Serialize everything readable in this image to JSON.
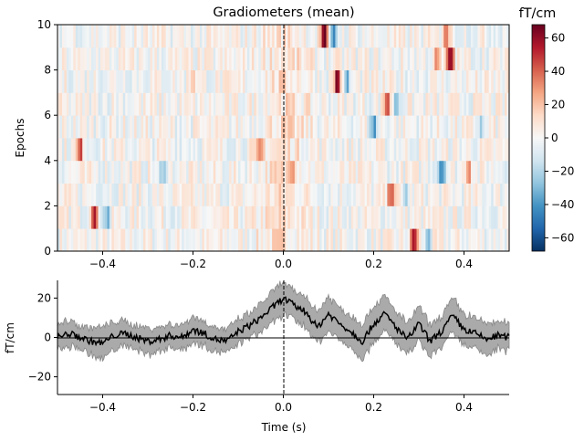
{
  "chart_data": [
    {
      "type": "heatmap",
      "title": "Gradiometers (mean)",
      "ylabel": "Epochs",
      "xlim": [
        -0.5,
        0.5
      ],
      "ylim": [
        0,
        10
      ],
      "x_ticks": [
        -0.4,
        -0.2,
        0.0,
        0.2,
        0.4
      ],
      "x_tick_labels": [
        "−0.4",
        "−0.2",
        "0.0",
        "0.2",
        "0.4"
      ],
      "y_ticks": [
        0,
        2,
        4,
        6,
        8,
        10
      ],
      "y_tick_labels": [
        "0",
        "2",
        "4",
        "6",
        "8",
        "10"
      ],
      "event_marker_x": 0.0,
      "colormap": "RdBu_r",
      "color_range": [
        -68,
        68
      ],
      "colorbar": {
        "label": "fT/cm",
        "ticks": [
          60,
          40,
          20,
          0,
          -20,
          -40,
          -60
        ],
        "tick_labels": [
          "60",
          "40",
          "20",
          "0",
          "−20",
          "−40",
          "−60"
        ]
      },
      "epochs": 10,
      "x_bins": 200,
      "notable_events": [
        {
          "epoch": 9,
          "time": 0.09,
          "value": 65
        },
        {
          "epoch": 9,
          "time": 0.11,
          "value": -45
        },
        {
          "epoch": 9,
          "time": 0.36,
          "value": 45
        },
        {
          "epoch": 8,
          "time": 0.37,
          "value": 68
        },
        {
          "epoch": 8,
          "time": 0.34,
          "value": 25
        },
        {
          "epoch": 7,
          "time": 0.12,
          "value": 66
        },
        {
          "epoch": 7,
          "time": 0.14,
          "value": -35
        },
        {
          "epoch": 7,
          "time": -0.2,
          "value": 25
        },
        {
          "epoch": 6,
          "time": 0.23,
          "value": 50
        },
        {
          "epoch": 6,
          "time": 0.25,
          "value": -25
        },
        {
          "epoch": 5,
          "time": 0.2,
          "value": -40
        },
        {
          "epoch": 5,
          "time": 0.44,
          "value": -20
        },
        {
          "epoch": 4,
          "time": -0.45,
          "value": 40
        },
        {
          "epoch": 4,
          "time": -0.05,
          "value": 25
        },
        {
          "epoch": 3,
          "time": 0.02,
          "value": 35
        },
        {
          "epoch": 3,
          "time": 0.35,
          "value": -40
        },
        {
          "epoch": 3,
          "time": 0.41,
          "value": 40
        },
        {
          "epoch": 3,
          "time": -0.27,
          "value": -30
        },
        {
          "epoch": 2,
          "time": 0.24,
          "value": 55
        },
        {
          "epoch": 2,
          "time": 0.27,
          "value": -20
        },
        {
          "epoch": 1,
          "time": -0.42,
          "value": 60
        },
        {
          "epoch": 1,
          "time": -0.39,
          "value": -30
        },
        {
          "epoch": 0,
          "time": 0.29,
          "value": 60
        },
        {
          "epoch": 0,
          "time": 0.32,
          "value": -25
        }
      ]
    },
    {
      "type": "line",
      "xlabel": "Time (s)",
      "ylabel": "fT/cm",
      "xlim": [
        -0.5,
        0.5
      ],
      "ylim": [
        -29,
        29
      ],
      "x_ticks": [
        -0.4,
        -0.2,
        0.0,
        0.2,
        0.4
      ],
      "x_tick_labels": [
        "−0.4",
        "−0.2",
        "0.0",
        "0.2",
        "0.4"
      ],
      "y_ticks": [
        -20,
        0,
        20
      ],
      "y_tick_labels": [
        "−20",
        "0",
        "20"
      ],
      "event_marker_x": 0.0,
      "zero_line": true,
      "band": "confidence interval (grey)",
      "series": [
        {
          "line_color": "#000000",
          "band_color": "#999999",
          "x": [
            -0.5,
            -0.475,
            -0.45,
            -0.425,
            -0.4,
            -0.375,
            -0.35,
            -0.325,
            -0.3,
            -0.275,
            -0.25,
            -0.225,
            -0.2,
            -0.175,
            -0.15,
            -0.125,
            -0.1,
            -0.075,
            -0.05,
            -0.025,
            0.0,
            0.025,
            0.05,
            0.075,
            0.1,
            0.125,
            0.15,
            0.175,
            0.2,
            0.225,
            0.25,
            0.275,
            0.3,
            0.325,
            0.35,
            0.375,
            0.4,
            0.425,
            0.45,
            0.475,
            0.5
          ],
          "values": [
            0,
            2,
            0,
            -2,
            -3,
            1,
            2,
            0,
            -2,
            -1,
            1,
            0,
            4,
            2,
            -1,
            -2,
            3,
            6,
            10,
            15,
            20,
            16,
            13,
            5,
            12,
            7,
            3,
            -2,
            7,
            12,
            5,
            -1,
            7,
            -2,
            3,
            11,
            4,
            2,
            -1,
            1,
            0
          ],
          "band_halfwidth": [
            6,
            7,
            6,
            7,
            8,
            7,
            6,
            6,
            7,
            6,
            6,
            6,
            7,
            6,
            6,
            6,
            6,
            6,
            7,
            8,
            8,
            7,
            8,
            8,
            9,
            8,
            8,
            9,
            9,
            9,
            8,
            8,
            9,
            8,
            8,
            9,
            8,
            8,
            8,
            7,
            7
          ]
        }
      ]
    }
  ]
}
